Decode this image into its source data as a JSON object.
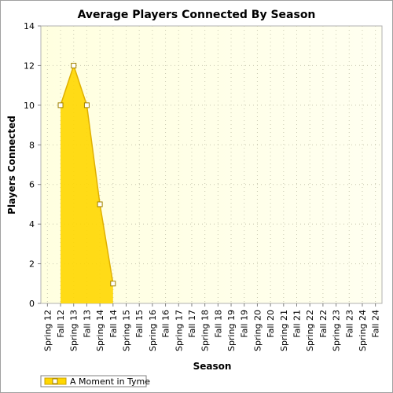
{
  "chart_data": {
    "type": "area",
    "title": "Average Players Connected By Season",
    "xlabel": "Season",
    "ylabel": "Players Connected",
    "ylim": [
      0,
      14
    ],
    "yticks": [
      0,
      2,
      4,
      6,
      8,
      10,
      12,
      14
    ],
    "grid": true,
    "legend_position": "bottom-left",
    "categories": [
      "Spring 12",
      "Fall 12",
      "Spring 13",
      "Fall 13",
      "Spring 14",
      "Fall 14",
      "Spring 15",
      "Fall 15",
      "Spring 16",
      "Fall 16",
      "Spring 17",
      "Fall 17",
      "Spring 18",
      "Fall 18",
      "Spring 19",
      "Fall 19",
      "Spring 20",
      "Fall 20",
      "Spring 21",
      "Fall 21",
      "Spring 22",
      "Fall 22",
      "Spring 23",
      "Fall 23",
      "Spring 24",
      "Fall 24"
    ],
    "series": [
      {
        "name": "A Moment in Tyme",
        "color": "#ffd700",
        "points": [
          {
            "x": "Fall 12",
            "y": 10
          },
          {
            "x": "Spring 13",
            "y": 12
          },
          {
            "x": "Fall 13",
            "y": 10
          },
          {
            "x": "Spring 14",
            "y": 5
          },
          {
            "x": "Fall 14",
            "y": 1
          }
        ]
      }
    ]
  }
}
